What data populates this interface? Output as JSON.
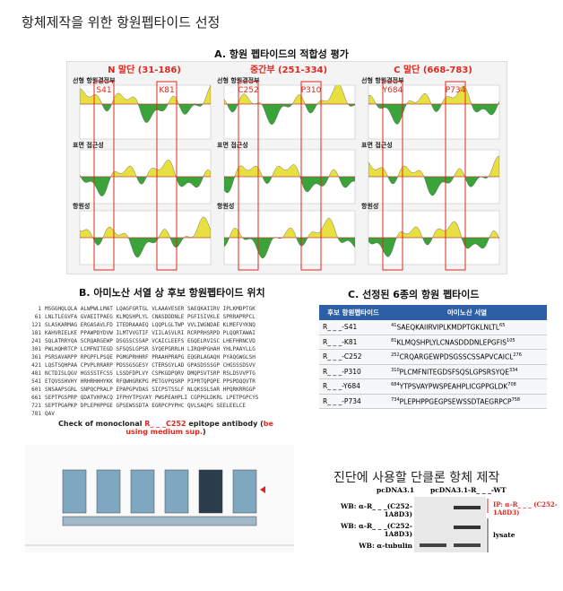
{
  "header": {
    "title": "항체제작을 위한 항원펩타이드 선정"
  },
  "section_a": {
    "title": "A. 항원 펩타이드의 적합성 평가",
    "row_labels": [
      "선형 항원결정부",
      "표면 접근성",
      "항원성"
    ],
    "columns": [
      {
        "title": "N 말단 (31-186)",
        "markers": [
          "S41",
          "K81"
        ]
      },
      {
        "title": "중간부 (251-334)",
        "markers": [
          "C252",
          "P310"
        ]
      },
      {
        "title": "C 말단 (668-783)",
        "markers": [
          "Y684",
          "P734"
        ]
      }
    ]
  },
  "section_b": {
    "title": "B. 아미노산 서열 상 후보 항원펩타이드 위치",
    "lines": [
      {
        "start": "1",
        "seq": "MSGGHQLQLA ALWPWLLMAT LQAGFGRTGL VLAAAVESER SAEQKAIIRV IPLKMDPTGK"
      },
      {
        "start": "61",
        "seq": "LNLTLEGVFA GVAEITPAEG KLMQSHPLYL CNASDDDNLE PGFISIVKLE SPRRAPRPCL"
      },
      {
        "start": "121",
        "seq": "SLASKARMAG ERGASAVLFD ITEDRAAAEQ LQQPLGLTWP VVLIWGNDAE KLMEFVYKNQ"
      },
      {
        "start": "181",
        "seq": "KAHVRIELKE PPAWPDYDVW ILMTVVGTIF VIILASVLRI RCRPRHSRPD PLQQRTAWAI"
      },
      {
        "start": "241",
        "seq": "SQLATRRYQA SCRQARGEWP DSGSSCSSAP VCAICLEEFS EGQELRVISC LHEFHRNCVD"
      },
      {
        "start": "301",
        "seq": "PWLHQHRTCP LCMFNITEGD SFSQSLGPSR SYQEPGRRLH LIRQHPGHAH YHLPAAYLLG"
      },
      {
        "start": "361",
        "seq": "PSRSAVARPP RPGPFLPSQE PGMGPRHHRF PRAAHPRAPG EQGRLAGAQH PYAQGWGLSH"
      },
      {
        "start": "421",
        "seq": "LQSTSQHPAA CPVPLRRARP PDSSGSGESY CTERSGYLAD GPASDSSSGP CHGSSSDSVV"
      },
      {
        "start": "481",
        "seq": "NCTDISLQGV HGSSSTFCSS LSSDFDPLVY CSPKGDPQRV DMQPSVTSRP RSLDSVVPTG"
      },
      {
        "start": "541",
        "seq": "ETQVSSHVHY HRHRHHHYKK RFQWHGRKPG PETGVPQSRP PIPRTQPQPE PPSPDQQVTR"
      },
      {
        "start": "601",
        "seq": "SNSAAPSGRL SNPQCPRALP EPAPGPVDAS SICPSTSSLF NLQKSSLSAR HPQRKRRGGP"
      },
      {
        "start": "661",
        "seq": "SEPTPGSPRP QDATVHPACQ IFPHYTPSVAY PWSPEAHPLI CGPPGLDKRL LPETPGPCYS"
      },
      {
        "start": "721",
        "seq": "SEPTPGAPKP DPLEPHPPGE GPSEWSSDTA EGRPCPYPHC QVLSAQPG SEELEELCE"
      },
      {
        "start": "781",
        "seq": "QAV"
      }
    ]
  },
  "section_c": {
    "title": "C. 선정된 6종의 항원 펩타이드",
    "headers": [
      "후보 항원펩타이드",
      "아미노산 서열"
    ],
    "rows": [
      {
        "name": "R_ _ _-S41",
        "start": "41",
        "seq": "SAEQKAIIRVIPLKMDPTGKLNLTL",
        "end": "65"
      },
      {
        "name": "R_ _ _-K81",
        "start": "81",
        "seq": "KLMQSHPLYLCNASDDDNLEPGFIS",
        "end": "105"
      },
      {
        "name": "R_ _ _-C252",
        "start": "252",
        "seq": "CRQARGEWPDSGSSCSSAPVCAICL",
        "end": "276"
      },
      {
        "name": "R_ _ _-P310",
        "start": "310",
        "seq": "PLCMFNITEGDSFSQSLGPSRSYQE",
        "end": "334"
      },
      {
        "name": "R_ _ _-Y684",
        "start": "684",
        "seq": "YTPSVAYPWSPEAHPLICGPPGLDK",
        "end": "708"
      },
      {
        "name": "R_ _ _-P734",
        "start": "734",
        "seq": "PLEPHPPGEGPSEWSSDTAEGRPCP",
        "end": "758"
      }
    ]
  },
  "blot_check": {
    "title_parts": [
      "Check of monoclonal ",
      "R_ _ _C252",
      "epitope antibody (",
      "be using medium sup.",
      ")"
    ]
  },
  "antibody": {
    "title": "진단에 사용할 단클론 항체 제작",
    "lanes": [
      "pcDNA3.1",
      "pcDNA3.1-R_ _ _-WT"
    ],
    "rows": [
      "WB: α-R_ _ _(C252-1A8D3)",
      "WB: α-R_ _ _(C252-1A8D3)",
      "WB: α-tubulin"
    ],
    "ip": "IP: α-R_ _ _ (C252-1A8D3)",
    "lysate": "lysate"
  }
}
